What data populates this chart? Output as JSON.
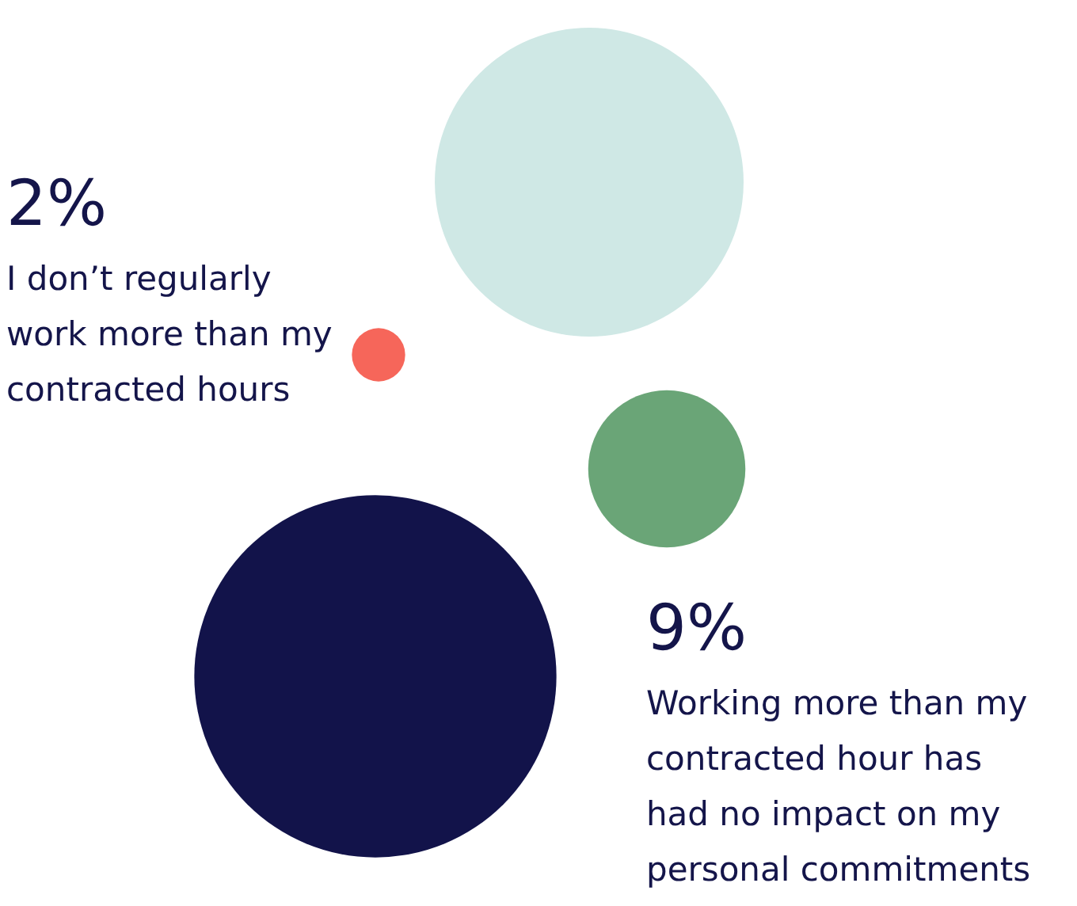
{
  "chart_data": {
    "type": "other",
    "categories": [
      null,
      "I don’t regularly work more than my contracted hours",
      null,
      "Working more than my contracted hour has had no impact on my personal commitments"
    ],
    "values": [
      null,
      2,
      null,
      9
    ],
    "value_labels": [
      null,
      "2%",
      null,
      "9%"
    ],
    "colors": [
      "#cfe8e5",
      "#f6665a",
      "#6aa577",
      "#12134a"
    ]
  }
}
